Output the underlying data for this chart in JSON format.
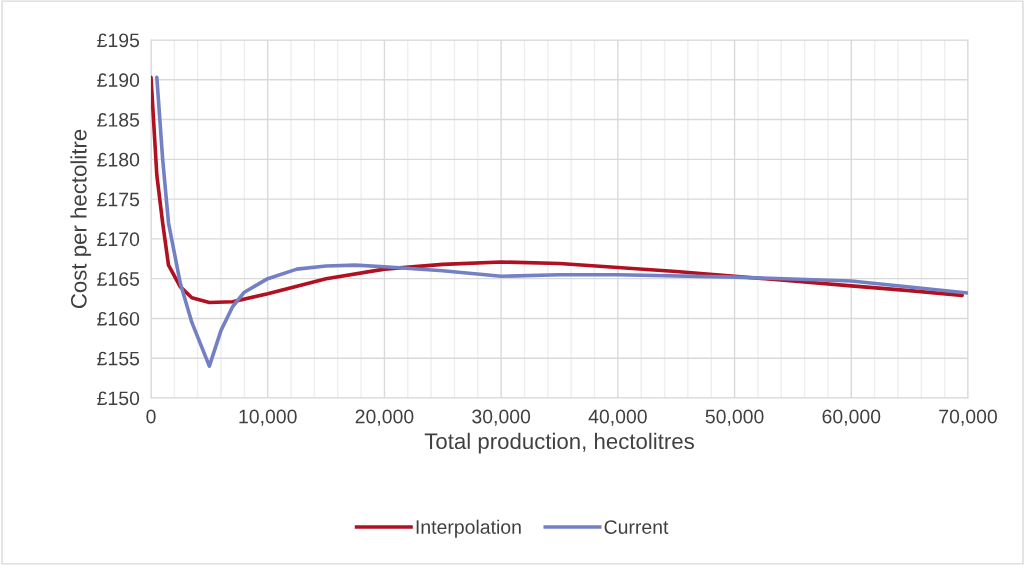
{
  "chart_data": {
    "type": "line",
    "xlabel": "Total production, hectolitres",
    "ylabel": "Cost per hectolitre",
    "xlim": [
      0,
      70000
    ],
    "ylim": [
      150,
      195
    ],
    "xticks": [
      {
        "value": 0,
        "label": "0"
      },
      {
        "value": 2000,
        "label": null
      },
      {
        "value": 4000,
        "label": null
      },
      {
        "value": 6000,
        "label": null
      },
      {
        "value": 8000,
        "label": null
      },
      {
        "value": 10000,
        "label": "10,000"
      },
      {
        "value": 12000,
        "label": null
      },
      {
        "value": 14000,
        "label": null
      },
      {
        "value": 16000,
        "label": null
      },
      {
        "value": 18000,
        "label": null
      },
      {
        "value": 20000,
        "label": "20,000"
      },
      {
        "value": 22000,
        "label": null
      },
      {
        "value": 24000,
        "label": null
      },
      {
        "value": 26000,
        "label": null
      },
      {
        "value": 28000,
        "label": null
      },
      {
        "value": 30000,
        "label": "30,000"
      },
      {
        "value": 32000,
        "label": null
      },
      {
        "value": 34000,
        "label": null
      },
      {
        "value": 36000,
        "label": null
      },
      {
        "value": 38000,
        "label": null
      },
      {
        "value": 40000,
        "label": "40,000"
      },
      {
        "value": 42000,
        "label": null
      },
      {
        "value": 44000,
        "label": null
      },
      {
        "value": 46000,
        "label": null
      },
      {
        "value": 48000,
        "label": null
      },
      {
        "value": 50000,
        "label": "50,000"
      },
      {
        "value": 52000,
        "label": null
      },
      {
        "value": 54000,
        "label": null
      },
      {
        "value": 56000,
        "label": null
      },
      {
        "value": 58000,
        "label": null
      },
      {
        "value": 60000,
        "label": "60,000"
      },
      {
        "value": 62000,
        "label": null
      },
      {
        "value": 64000,
        "label": null
      },
      {
        "value": 66000,
        "label": null
      },
      {
        "value": 68000,
        "label": null
      },
      {
        "value": 70000,
        "label": "70,000"
      }
    ],
    "yticks": [
      {
        "value": 150,
        "label": "£150"
      },
      {
        "value": 155,
        "label": "£155"
      },
      {
        "value": 160,
        "label": "£160"
      },
      {
        "value": 165,
        "label": "£165"
      },
      {
        "value": 170,
        "label": "£170"
      },
      {
        "value": 175,
        "label": "£175"
      },
      {
        "value": 180,
        "label": "£180"
      },
      {
        "value": 185,
        "label": "£185"
      },
      {
        "value": 190,
        "label": "£190"
      },
      {
        "value": 195,
        "label": "£195"
      }
    ],
    "grid": true,
    "legend": "bottom",
    "marker": "none",
    "line_style": "solid",
    "series": [
      {
        "name": "Interpolation",
        "color": "#b01020",
        "x": [
          0,
          500,
          1000,
          1500,
          2500,
          3500,
          5000,
          7000,
          10000,
          15000,
          20000,
          25000,
          30000,
          35000,
          40000,
          45000,
          50000,
          55000,
          60000,
          65000,
          69500
        ],
        "values": [
          190.3,
          178,
          172,
          166.7,
          164,
          162.6,
          162,
          162.1,
          163.1,
          165,
          166.2,
          166.8,
          167.1,
          166.9,
          166.4,
          165.9,
          165.3,
          164.7,
          164.1,
          163.5,
          162.9
        ]
      },
      {
        "name": "Current",
        "color": "#7480c4",
        "x": [
          500,
          1000,
          1500,
          2500,
          3500,
          5000,
          6000,
          7000,
          8000,
          10000,
          12500,
          15000,
          17500,
          20000,
          25000,
          30000,
          35000,
          40000,
          50000,
          60000,
          70000
        ],
        "values": [
          190.3,
          180,
          172,
          164.5,
          159.5,
          154,
          158.5,
          161.5,
          163.3,
          165,
          166.2,
          166.6,
          166.7,
          166.5,
          166,
          165.3,
          165.5,
          165.5,
          165.2,
          164.7,
          163.2
        ]
      }
    ]
  }
}
